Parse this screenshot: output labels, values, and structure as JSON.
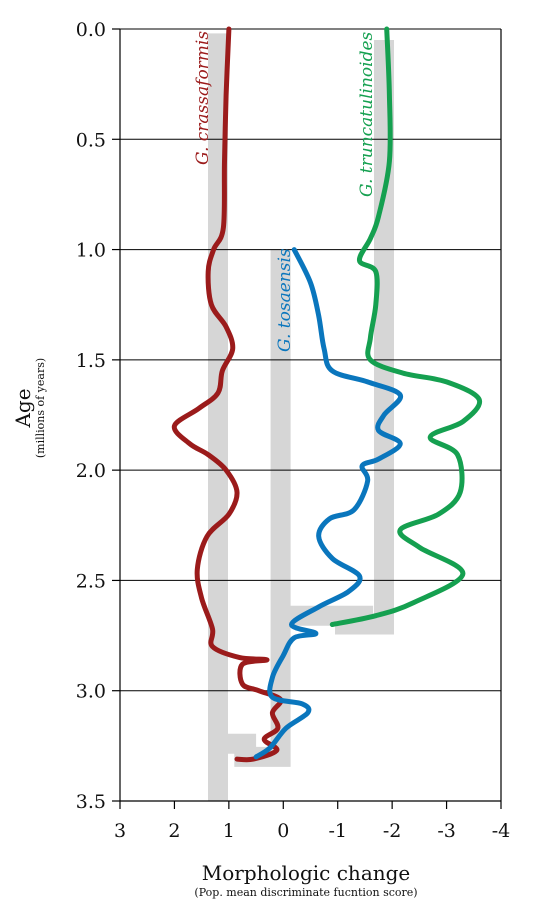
{
  "chart_data": {
    "type": "line",
    "title": "",
    "ylabel": "Age",
    "ylabel_sub": "(millions of years)",
    "xlabel": "Morphologic change",
    "xlabel_sub": "(Pop. mean discriminate fucntion score)",
    "xlim": [
      3,
      -4
    ],
    "ylim": [
      0,
      3.5
    ],
    "y_inverted": true,
    "x_ticks": [
      "3",
      "2",
      "1",
      "0",
      "-1",
      "-2",
      "-3",
      "-4"
    ],
    "y_ticks": [
      "0.0",
      "0.5",
      "1.0",
      "1.5",
      "2.0",
      "2.5",
      "3.0",
      "3.5"
    ],
    "grid": "horizontal",
    "series": [
      {
        "name": "G. crassaformis",
        "color": "#9b1b1b",
        "points": [
          [
            1.0,
            0.0
          ],
          [
            1.05,
            0.3
          ],
          [
            1.08,
            0.6
          ],
          [
            1.1,
            0.9
          ],
          [
            1.28,
            1.0
          ],
          [
            1.38,
            1.1
          ],
          [
            1.32,
            1.25
          ],
          [
            1.05,
            1.35
          ],
          [
            0.93,
            1.45
          ],
          [
            1.12,
            1.55
          ],
          [
            1.2,
            1.65
          ],
          [
            1.55,
            1.72
          ],
          [
            2.0,
            1.8
          ],
          [
            1.72,
            1.88
          ],
          [
            1.38,
            1.93
          ],
          [
            1.05,
            2.0
          ],
          [
            0.85,
            2.1
          ],
          [
            1.0,
            2.2
          ],
          [
            1.4,
            2.3
          ],
          [
            1.58,
            2.45
          ],
          [
            1.5,
            2.58
          ],
          [
            1.3,
            2.72
          ],
          [
            1.3,
            2.8
          ],
          [
            0.8,
            2.85
          ],
          [
            0.3,
            2.86
          ],
          [
            0.75,
            2.88
          ],
          [
            0.75,
            2.97
          ],
          [
            0.45,
            3.0
          ],
          [
            0.05,
            3.04
          ],
          [
            0.2,
            3.1
          ],
          [
            0.1,
            3.17
          ],
          [
            0.35,
            3.22
          ],
          [
            0.12,
            3.27
          ],
          [
            0.55,
            3.31
          ],
          [
            0.85,
            3.31
          ]
        ]
      },
      {
        "name": "G. tosaensis",
        "color": "#0a76bd",
        "points": [
          [
            -0.2,
            1.0
          ],
          [
            -0.5,
            1.15
          ],
          [
            -0.65,
            1.3
          ],
          [
            -0.75,
            1.45
          ],
          [
            -0.9,
            1.55
          ],
          [
            -1.55,
            1.6
          ],
          [
            -2.15,
            1.66
          ],
          [
            -1.85,
            1.75
          ],
          [
            -1.75,
            1.82
          ],
          [
            -2.15,
            1.88
          ],
          [
            -1.75,
            1.95
          ],
          [
            -1.45,
            1.98
          ],
          [
            -1.55,
            2.05
          ],
          [
            -1.3,
            2.18
          ],
          [
            -0.85,
            2.22
          ],
          [
            -0.65,
            2.3
          ],
          [
            -0.9,
            2.4
          ],
          [
            -1.4,
            2.48
          ],
          [
            -1.2,
            2.55
          ],
          [
            -0.65,
            2.62
          ],
          [
            -0.15,
            2.7
          ],
          [
            -0.6,
            2.74
          ],
          [
            -0.2,
            2.76
          ],
          [
            0.0,
            2.84
          ],
          [
            0.2,
            2.94
          ],
          [
            0.2,
            3.03
          ],
          [
            -0.35,
            3.06
          ],
          [
            -0.45,
            3.1
          ],
          [
            -0.05,
            3.17
          ],
          [
            0.25,
            3.26
          ],
          [
            0.5,
            3.3
          ]
        ]
      },
      {
        "name": "G. truncatulinoides",
        "color": "#15a050",
        "points": [
          [
            -1.9,
            0.0
          ],
          [
            -1.95,
            0.3
          ],
          [
            -1.95,
            0.6
          ],
          [
            -1.75,
            0.85
          ],
          [
            -1.6,
            0.95
          ],
          [
            -1.4,
            1.05
          ],
          [
            -1.7,
            1.1
          ],
          [
            -1.7,
            1.25
          ],
          [
            -1.6,
            1.4
          ],
          [
            -1.6,
            1.5
          ],
          [
            -2.2,
            1.56
          ],
          [
            -3.0,
            1.6
          ],
          [
            -3.6,
            1.68
          ],
          [
            -3.3,
            1.78
          ],
          [
            -2.7,
            1.85
          ],
          [
            -3.2,
            1.93
          ],
          [
            -3.25,
            2.1
          ],
          [
            -2.85,
            2.2
          ],
          [
            -2.15,
            2.27
          ],
          [
            -2.5,
            2.35
          ],
          [
            -3.3,
            2.47
          ],
          [
            -2.4,
            2.6
          ],
          [
            -1.7,
            2.66
          ],
          [
            -0.9,
            2.7
          ]
        ]
      }
    ]
  }
}
